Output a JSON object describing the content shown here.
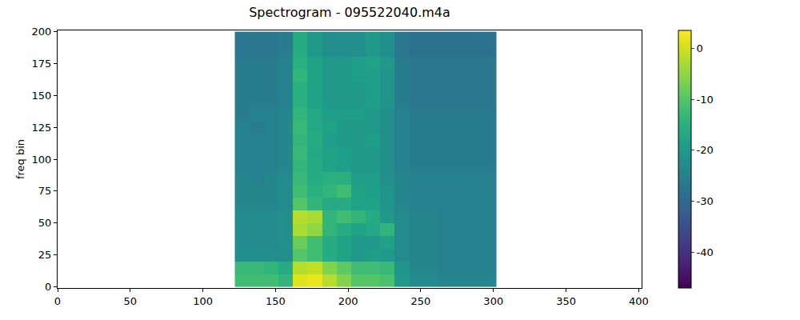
{
  "chart_data": {
    "type": "heatmap",
    "title": "Spectrogram - 095522040.m4a",
    "y_label": "freq bin",
    "color": "Viridis",
    "grid": false,
    "xlim": [
      0,
      402
    ],
    "ylim": [
      -1,
      201
    ],
    "xticks": [
      0,
      50,
      100,
      150,
      200,
      250,
      300,
      350,
      400
    ],
    "yticks": [
      0,
      25,
      50,
      75,
      100,
      125,
      150,
      175,
      200
    ],
    "zlim": [
      -47,
      3.5
    ],
    "zticks": [
      -40,
      -30,
      -20,
      -10,
      0
    ],
    "x": [
      122,
      132,
      142,
      152,
      162,
      172,
      182,
      192,
      202,
      212,
      222,
      232,
      242,
      252,
      262,
      272,
      282,
      292,
      302
    ],
    "y": [
      0,
      10,
      20,
      30,
      40,
      50,
      60,
      70,
      80,
      90,
      100,
      110,
      120,
      130,
      140,
      150,
      160,
      170,
      180,
      190,
      200
    ],
    "z": [
      [
        -12,
        -12,
        -12,
        -14,
        1,
        2,
        -2,
        -6,
        -10,
        -10,
        -11,
        -20,
        -23,
        -23,
        -24,
        -24,
        -24,
        -24
      ],
      [
        -13,
        -13,
        -14,
        -16,
        -2,
        -1,
        -6,
        -9,
        -12,
        -12,
        -13,
        -21,
        -24,
        -24,
        -25,
        -25,
        -25,
        -25
      ],
      [
        -22,
        -22,
        -22,
        -22,
        -10,
        -12,
        -16,
        -18,
        -20,
        -19,
        -20,
        -23,
        -24,
        -24,
        -25,
        -25,
        -25,
        -25
      ],
      [
        -23,
        -23,
        -23,
        -22,
        -8,
        -12,
        -16,
        -18,
        -20,
        -20,
        -18,
        -23,
        -24,
        -24,
        -25,
        -25,
        -25,
        -25
      ],
      [
        -23,
        -23,
        -23,
        -22,
        -3,
        -5,
        -14,
        -16,
        -18,
        -17,
        -14,
        -23,
        -24,
        -24,
        -25,
        -25,
        -25,
        -25
      ],
      [
        -23,
        -23,
        -23,
        -22,
        -2,
        -3,
        -14,
        -12,
        -14,
        -16,
        -20,
        -23,
        -24,
        -24,
        -25,
        -25,
        -25,
        -25
      ],
      [
        -24,
        -24,
        -24,
        -23,
        -10,
        -14,
        -16,
        -16,
        -18,
        -18,
        -21,
        -24,
        -25,
        -25,
        -25,
        -25,
        -25,
        -25
      ],
      [
        -24,
        -24,
        -24,
        -23,
        -12,
        -15,
        -14,
        -12,
        -18,
        -19,
        -21,
        -24,
        -25,
        -25,
        -25,
        -25,
        -25,
        -25
      ],
      [
        -24,
        -25,
        -24,
        -23,
        -13,
        -16,
        -15,
        -15,
        -19,
        -19,
        -22,
        -24,
        -25,
        -25,
        -25,
        -25,
        -25,
        -25
      ],
      [
        -25,
        -25,
        -25,
        -24,
        -14,
        -16,
        -18,
        -19,
        -20,
        -20,
        -22,
        -25,
        -26,
        -26,
        -26,
        -26,
        -26,
        -26
      ],
      [
        -25,
        -25,
        -25,
        -24,
        -13,
        -17,
        -18,
        -19,
        -20,
        -20,
        -22,
        -25,
        -26,
        -26,
        -26,
        -26,
        -26,
        -26
      ],
      [
        -25,
        -25,
        -25,
        -24,
        -14,
        -16,
        -19,
        -20,
        -20,
        -19,
        -22,
        -25,
        -26,
        -26,
        -26,
        -26,
        -26,
        -26
      ],
      [
        -25,
        -26,
        -25,
        -24,
        -13,
        -17,
        -18,
        -20,
        -20,
        -20,
        -22,
        -25,
        -26,
        -26,
        -26,
        -26,
        -26,
        -26
      ],
      [
        -26,
        -25,
        -25,
        -24,
        -14,
        -17,
        -19,
        -19,
        -19,
        -20,
        -22,
        -25,
        -26,
        -26,
        -26,
        -26,
        -26,
        -26
      ],
      [
        -26,
        -26,
        -26,
        -25,
        -15,
        -18,
        -20,
        -20,
        -20,
        -19,
        -21,
        -26,
        -27,
        -27,
        -27,
        -27,
        -27,
        -27
      ],
      [
        -26,
        -26,
        -26,
        -25,
        -15,
        -18,
        -20,
        -20,
        -20,
        -19,
        -21,
        -26,
        -27,
        -27,
        -27,
        -27,
        -27,
        -27
      ],
      [
        -26,
        -26,
        -26,
        -25,
        -14,
        -18,
        -20,
        -20,
        -19,
        -19,
        -21,
        -26,
        -27,
        -27,
        -27,
        -27,
        -27,
        -27
      ],
      [
        -26,
        -26,
        -26,
        -25,
        -15,
        -18,
        -20,
        -20,
        -19,
        -18,
        -20,
        -26,
        -27,
        -27,
        -27,
        -27,
        -27,
        -27
      ],
      [
        -27,
        -27,
        -27,
        -26,
        -16,
        -20,
        -22,
        -22,
        -22,
        -20,
        -22,
        -27,
        -28,
        -28,
        -28,
        -28,
        -28,
        -28
      ],
      [
        -27,
        -27,
        -27,
        -26,
        -16,
        -20,
        -22,
        -22,
        -22,
        -20,
        -22,
        -27,
        -28,
        -28,
        -28,
        -28,
        -28,
        -28
      ]
    ]
  }
}
